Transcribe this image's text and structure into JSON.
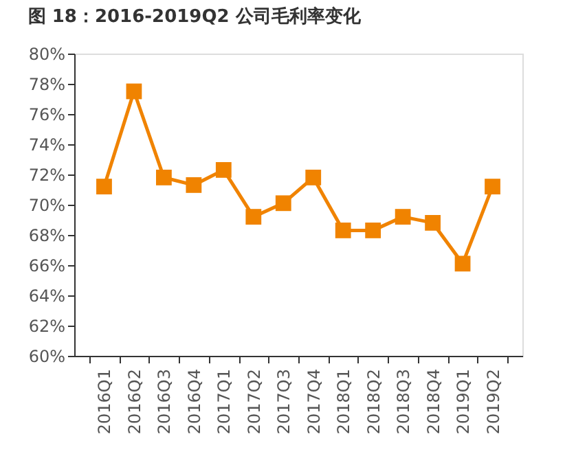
{
  "chart_data": {
    "type": "line",
    "title": "图 18：2016-2019Q2 公司毛利率变化",
    "categories": [
      "2016Q1",
      "2016Q2",
      "2016Q3",
      "2016Q4",
      "2017Q1",
      "2017Q2",
      "2017Q3",
      "2017Q4",
      "2018Q1",
      "2018Q2",
      "2018Q3",
      "2018Q4",
      "2019Q1",
      "2019Q2"
    ],
    "series": [
      {
        "color": "#f08300",
        "values": [
          71.2,
          77.5,
          71.8,
          71.3,
          72.3,
          69.2,
          70.1,
          71.8,
          68.3,
          68.3,
          69.2,
          68.8,
          66.1,
          71.2
        ]
      }
    ],
    "ylim": [
      60,
      80
    ],
    "yticks": [
      {
        "value": 60,
        "label": "60%"
      },
      {
        "value": 62,
        "label": "62%"
      },
      {
        "value": 64,
        "label": "64%"
      },
      {
        "value": 66,
        "label": "66%"
      },
      {
        "value": 68,
        "label": "68%"
      },
      {
        "value": 70,
        "label": "70%"
      },
      {
        "value": 72,
        "label": "72%"
      },
      {
        "value": 74,
        "label": "74%"
      },
      {
        "value": 76,
        "label": "76%"
      },
      {
        "value": 78,
        "label": "78%"
      },
      {
        "value": 80,
        "label": "80%"
      }
    ],
    "marker": "square",
    "line_style": "solid",
    "grid": false
  }
}
